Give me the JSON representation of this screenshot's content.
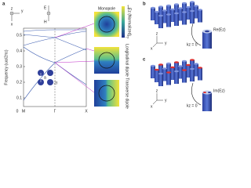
{
  "panel_a": {
    "label": "a",
    "axis_icon": [
      "z",
      "y",
      "x"
    ],
    "field_icon": [
      "E",
      "H"
    ],
    "y_axis_title": "Frequency (ωa/2πc)",
    "y_ticks": [
      "0.5",
      "0.4",
      "0.3",
      "0.2",
      "0.1"
    ],
    "x_ticks": [
      "0",
      "M",
      "Γ",
      "X"
    ],
    "lattice_labels": [
      "a",
      "2r"
    ],
    "modes": [
      "Monopole",
      "Longitudinal dipole",
      "Transverse dipole"
    ],
    "colorbar": {
      "max": "1",
      "title": "Ez (Normalized)",
      "min": "-1"
    }
  },
  "panel_b": {
    "label": "b",
    "axes": [
      "z",
      "y",
      "x"
    ],
    "annotations": [
      "kz = 0",
      "Re(Ez)"
    ]
  },
  "panel_c": {
    "label": "c",
    "axes": [
      "z",
      "y",
      "x"
    ],
    "annotations": [
      "kz = 0",
      "Im(Ez)"
    ]
  }
}
